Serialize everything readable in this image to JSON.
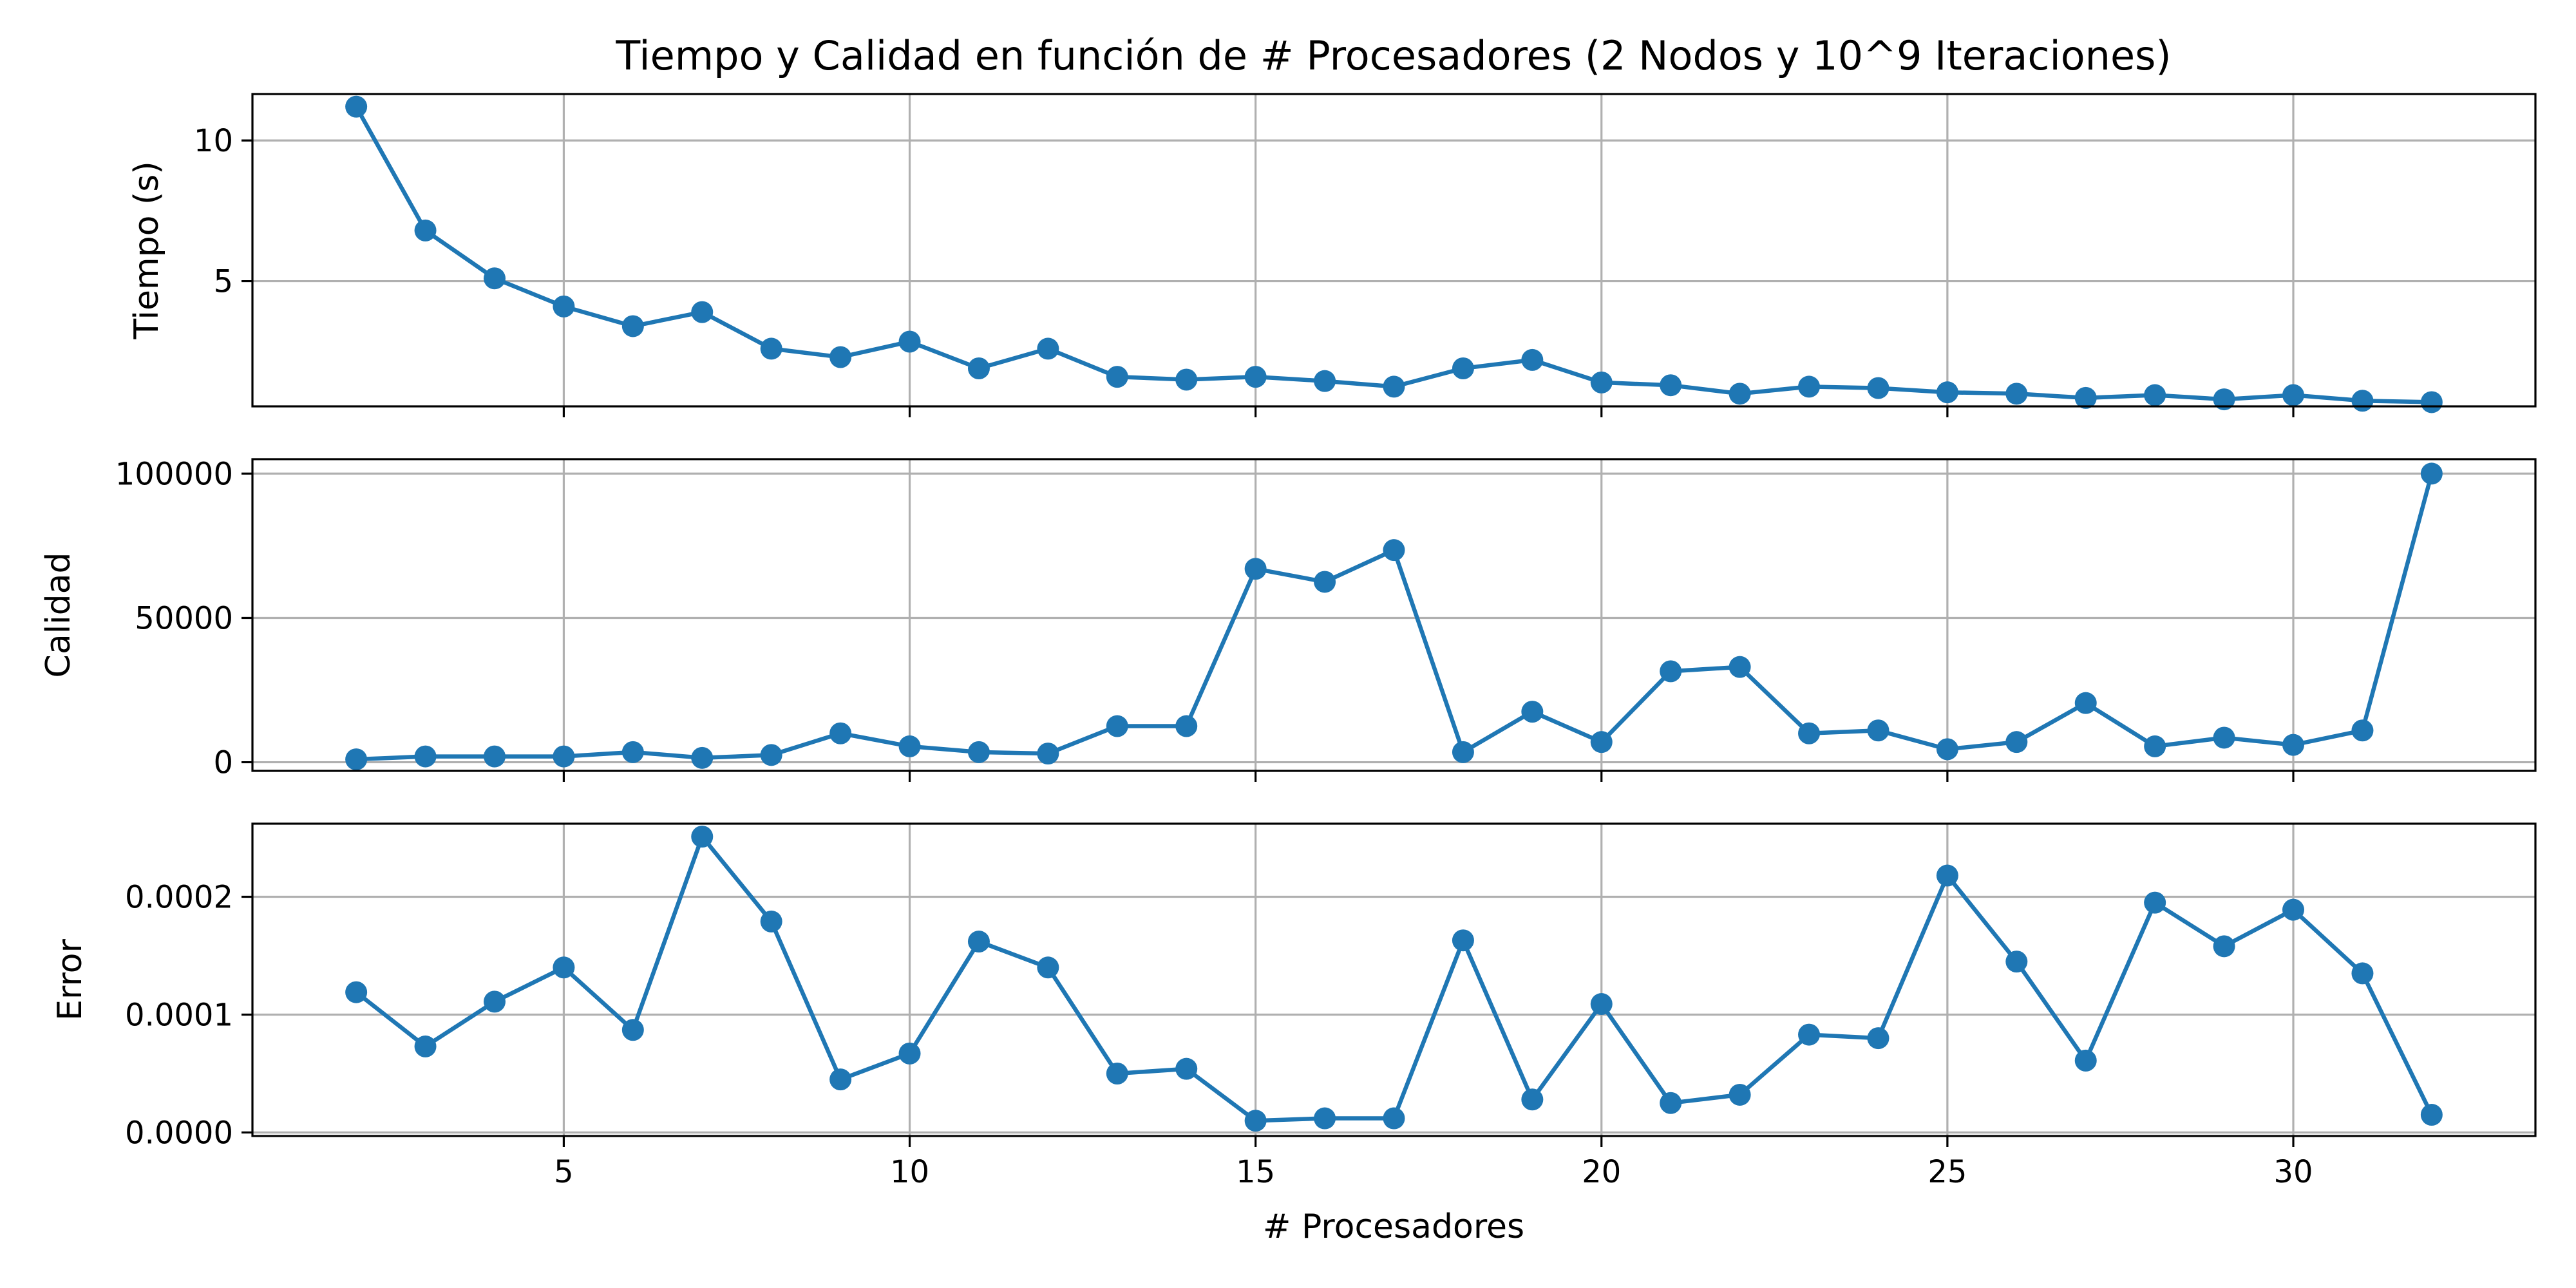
{
  "chart_data": {
    "type": "line",
    "title": "Tiempo y Calidad en función de # Procesadores (2 Nodos y 10^9 Iteraciones)",
    "xlabel": "# Procesadores",
    "x": [
      2,
      3,
      4,
      5,
      6,
      7,
      8,
      9,
      10,
      11,
      12,
      13,
      14,
      15,
      16,
      17,
      18,
      19,
      20,
      21,
      22,
      23,
      24,
      25,
      26,
      27,
      28,
      29,
      30,
      31,
      32
    ],
    "xlim": [
      0.5,
      33.5
    ],
    "xticks": [
      5,
      10,
      15,
      20,
      25,
      30
    ],
    "xtick_labels": [
      "5",
      "10",
      "15",
      "20",
      "25",
      "30"
    ],
    "grid": true,
    "marker": "circle",
    "color": "#1f77b4",
    "panels": [
      {
        "ylabel": "Tiempo (s)",
        "ylim": [
          0.55,
          11.65
        ],
        "yticks": [
          5,
          10
        ],
        "ytick_labels": [
          "5",
          "10"
        ],
        "values": [
          11.2,
          6.8,
          5.1,
          4.1,
          3.4,
          3.9,
          2.6,
          2.3,
          2.85,
          1.9,
          2.6,
          1.6,
          1.5,
          1.6,
          1.45,
          1.25,
          1.9,
          2.2,
          1.4,
          1.3,
          1.0,
          1.25,
          1.2,
          1.05,
          1.0,
          0.85,
          0.95,
          0.8,
          0.95,
          0.75,
          0.7
        ]
      },
      {
        "ylabel": "Calidad",
        "ylim": [
          -3000,
          105000
        ],
        "yticks": [
          0,
          50000,
          100000
        ],
        "ytick_labels": [
          "0",
          "50000",
          "100000"
        ],
        "values": [
          1000,
          2000,
          2000,
          2000,
          3500,
          1500,
          2500,
          10000,
          5500,
          3500,
          3000,
          12500,
          12500,
          67000,
          62500,
          73500,
          3500,
          17500,
          7000,
          31500,
          33000,
          10000,
          11000,
          4500,
          7000,
          20500,
          5500,
          8500,
          6000,
          11000,
          100000
        ]
      },
      {
        "ylabel": "Error",
        "ylim": [
          -3e-06,
          0.000262
        ],
        "yticks": [
          0,
          0.0001,
          0.0002
        ],
        "ytick_labels": [
          "0.0000",
          "0.0001",
          "0.0002"
        ],
        "values": [
          0.000119,
          7.3e-05,
          0.000111,
          0.00014,
          8.7e-05,
          0.000251,
          0.000179,
          4.5e-05,
          6.7e-05,
          0.000162,
          0.00014,
          5e-05,
          5.4e-05,
          1e-05,
          1.2e-05,
          1.2e-05,
          0.000163,
          2.8e-05,
          0.000109,
          2.5e-05,
          3.2e-05,
          8.3e-05,
          8e-05,
          0.000218,
          0.000145,
          6.1e-05,
          0.000195,
          0.000158,
          0.000189,
          0.000135,
          1.5e-05
        ]
      }
    ]
  }
}
